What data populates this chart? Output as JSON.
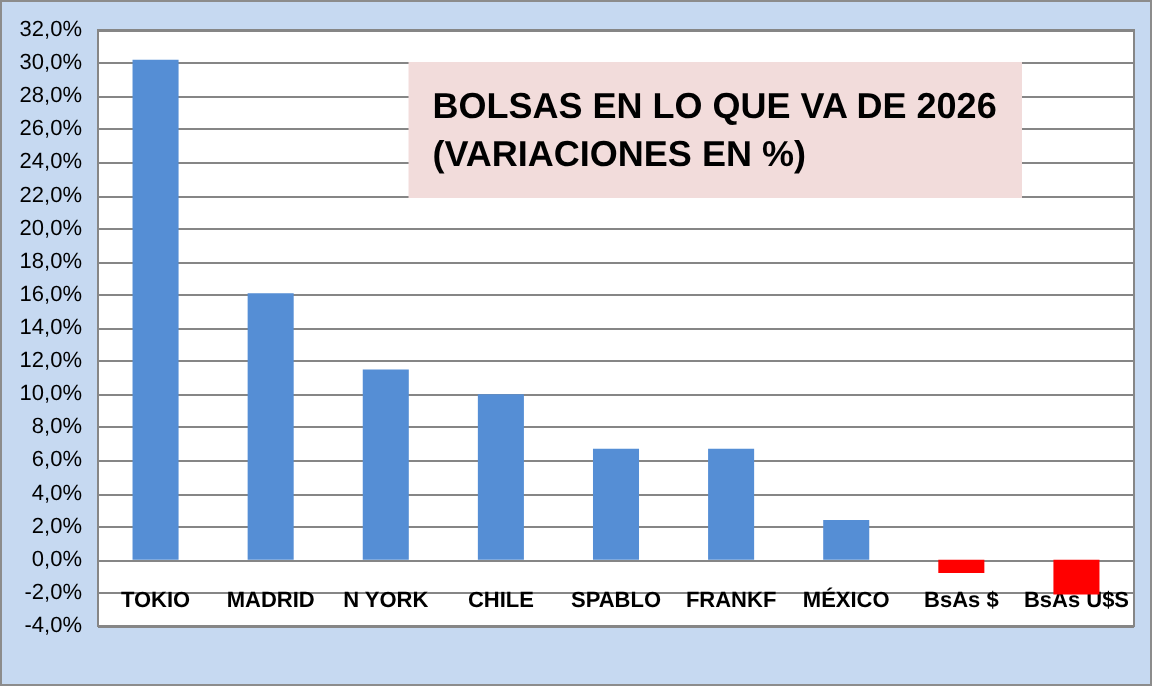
{
  "chart_data": {
    "type": "bar",
    "title": "BOLSAS EN LO QUE VA DE 2026\n(VARIACIONES EN %)",
    "categories": [
      "TOKIO",
      "MADRID",
      "N YORK",
      "CHILE",
      "SPABLO",
      "FRANKF",
      "MÉXICO",
      "BsAs $",
      "BsAs U$S"
    ],
    "values": [
      30.2,
      16.1,
      11.5,
      10.0,
      6.7,
      6.7,
      2.4,
      -0.8,
      -2.1
    ],
    "colors": [
      "#558ed5",
      "#558ed5",
      "#558ed5",
      "#558ed5",
      "#558ed5",
      "#558ed5",
      "#558ed5",
      "#ff0000",
      "#ff0000"
    ],
    "ylim": [
      -4,
      32
    ],
    "yticks": [
      {
        "value": -4,
        "label": "-4,0%"
      },
      {
        "value": -2,
        "label": "-2,0%"
      },
      {
        "value": 0,
        "label": "0,0%"
      },
      {
        "value": 2,
        "label": "2,0%"
      },
      {
        "value": 4,
        "label": "4,0%"
      },
      {
        "value": 6,
        "label": "6,0%"
      },
      {
        "value": 8,
        "label": "8,0%"
      },
      {
        "value": 10,
        "label": "10,0%"
      },
      {
        "value": 12,
        "label": "12,0%"
      },
      {
        "value": 14,
        "label": "14,0%"
      },
      {
        "value": 16,
        "label": "16,0%"
      },
      {
        "value": 18,
        "label": "18,0%"
      },
      {
        "value": 20,
        "label": "20,0%"
      },
      {
        "value": 22,
        "label": "22,0%"
      },
      {
        "value": 24,
        "label": "24,0%"
      },
      {
        "value": 26,
        "label": "26,0%"
      },
      {
        "value": 28,
        "label": "28,0%"
      },
      {
        "value": 30,
        "label": "30,0%"
      },
      {
        "value": 32,
        "label": "32,0%"
      }
    ],
    "grid": "y"
  }
}
